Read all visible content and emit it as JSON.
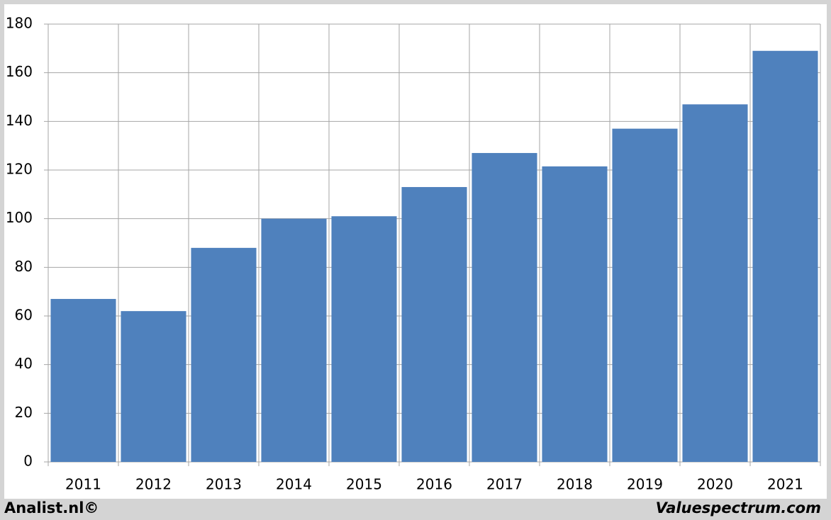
{
  "chart_data": {
    "type": "bar",
    "categories": [
      "2011",
      "2012",
      "2013",
      "2014",
      "2015",
      "2016",
      "2017",
      "2018",
      "2019",
      "2020",
      "2021"
    ],
    "values": [
      67,
      62,
      88,
      100,
      101,
      113,
      127,
      121.5,
      137,
      147,
      169
    ],
    "color": "#4f81bd",
    "ylim": [
      0,
      180
    ],
    "yticks": [
      0,
      20,
      40,
      60,
      80,
      100,
      120,
      140,
      160,
      180
    ],
    "grid": true,
    "annotations": [
      "Analist.nl©",
      "Valuespectrum.com"
    ]
  }
}
